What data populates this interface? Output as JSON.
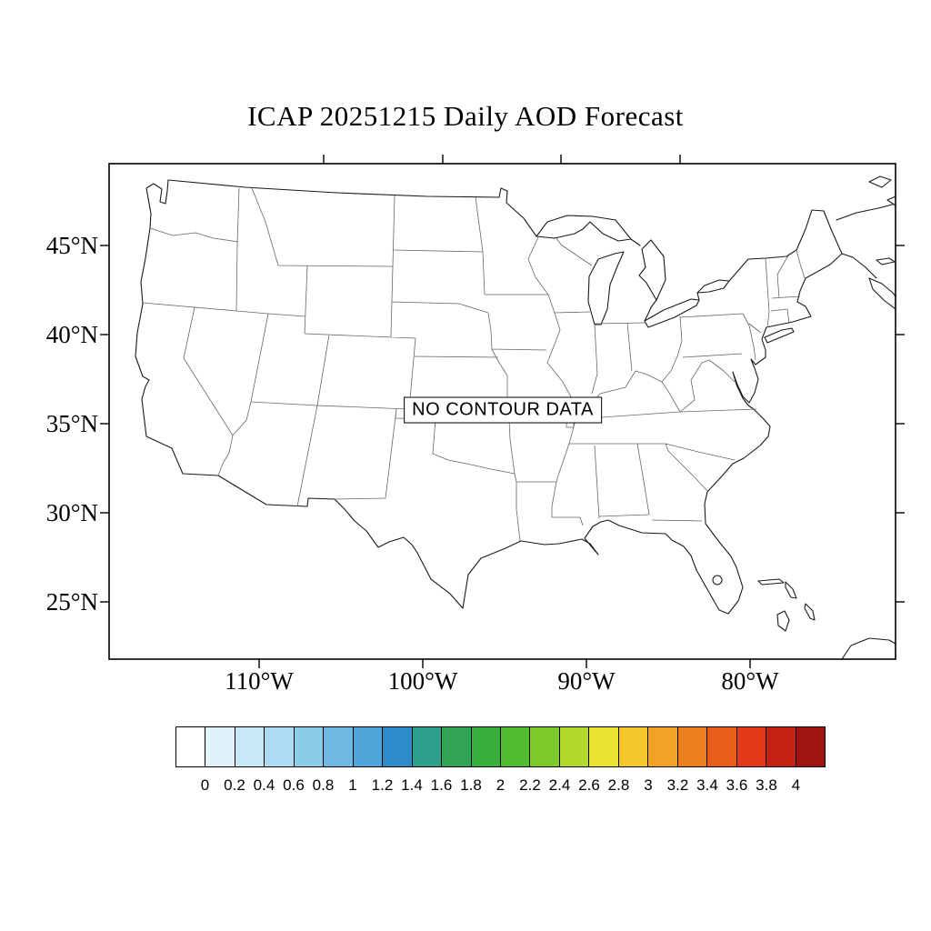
{
  "title": "ICAP 20251215 Daily AOD Forecast",
  "map": {
    "no_data_label": "NO CONTOUR DATA",
    "lat_labels": [
      "45°N",
      "40°N",
      "35°N",
      "30°N",
      "25°N"
    ],
    "lon_labels": [
      "110°W",
      "100°W",
      "90°W",
      "80°W"
    ]
  },
  "colorbar": {
    "tick_labels": [
      "0",
      "0.2",
      "0.4",
      "0.6",
      "0.8",
      "1",
      "1.2",
      "1.4",
      "1.6",
      "1.8",
      "2",
      "2.2",
      "2.4",
      "2.6",
      "2.8",
      "3",
      "3.2",
      "3.4",
      "3.6",
      "3.8",
      "4"
    ],
    "colors": [
      "#FFFFFF",
      "#E1F2FA",
      "#C9E8F6",
      "#ABDCF1",
      "#8DCBEB",
      "#6FB9E3",
      "#4FA4D9",
      "#2F8CCB",
      "#2FA08C",
      "#31A455",
      "#38AF3B",
      "#52BC30",
      "#7ECA2B",
      "#B2D92B",
      "#E7E32F",
      "#F6C72B",
      "#F2A326",
      "#EE7F1F",
      "#E95C1A",
      "#E23917",
      "#C52214",
      "#9E1510"
    ]
  },
  "chart_data": {
    "type": "heatmap",
    "title": "ICAP 20251215 Daily AOD Forecast",
    "x_ticks": [
      "110°W",
      "100°W",
      "90°W",
      "80°W"
    ],
    "y_ticks": [
      "45°N",
      "40°N",
      "35°N",
      "30°N",
      "25°N"
    ],
    "colorbar_levels": [
      0,
      0.2,
      0.4,
      0.6,
      0.8,
      1,
      1.2,
      1.4,
      1.6,
      1.8,
      2,
      2.2,
      2.4,
      2.6,
      2.8,
      3,
      3.2,
      3.4,
      3.6,
      3.8,
      4
    ],
    "values": [],
    "annotations": [
      "NO CONTOUR DATA"
    ]
  }
}
